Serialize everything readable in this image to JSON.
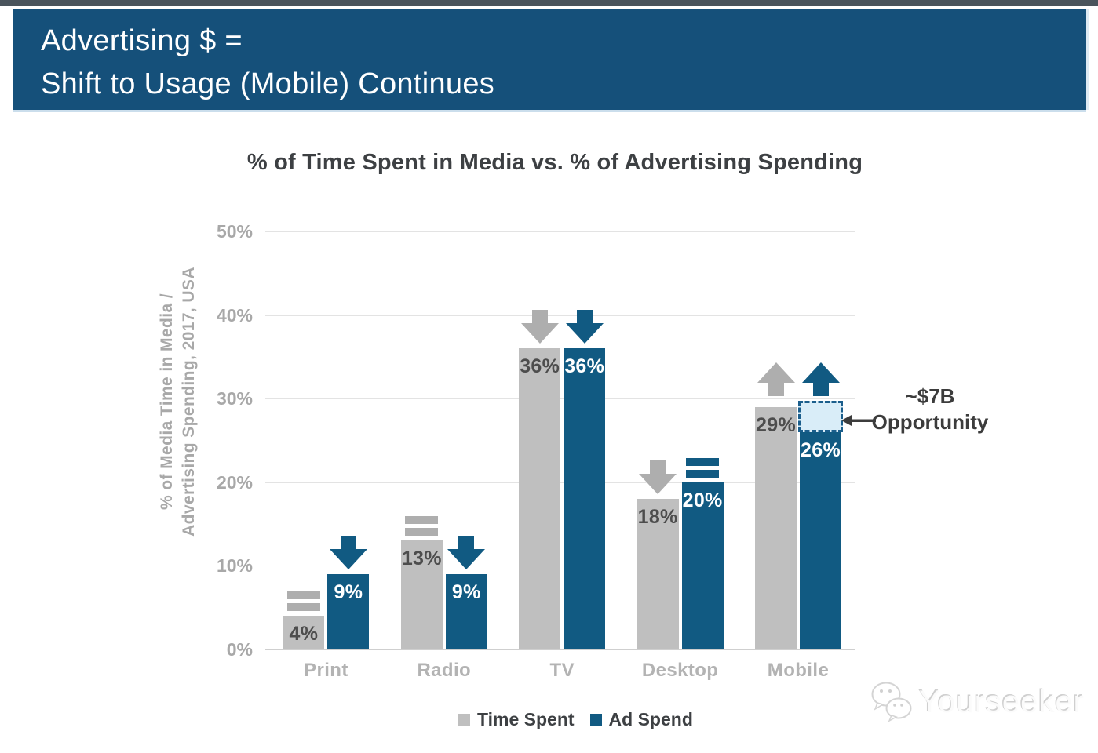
{
  "colors": {
    "top_strip": "#4a545c",
    "banner_bg": "#15507a",
    "title_text": "#3d4043",
    "tick_text": "#a8a8a8",
    "category_text": "#b3b3b3",
    "grid_line": "#e3e3e3",
    "axis_line": "#cfcfcf",
    "label_dark": "#4d4d4d",
    "annotation_text": "#3c3c3c",
    "opportunity_fill": "#d9edf8",
    "opportunity_border": "#1b5e8c",
    "bar_gray": "#bfbfbf",
    "bar_blue": "#115a82",
    "indicator_gray": "#aeaeae",
    "indicator_blue": "#115a82"
  },
  "banner": {
    "line1": "Advertising $ =",
    "line2": "Shift to Usage (Mobile) Continues"
  },
  "chart_data": {
    "type": "bar",
    "title": "% of Time Spent in Media vs. % of Advertising Spending",
    "ylabel": "% of Media Time in Media / Advertising Spending, 2017, USA",
    "ylabel_lines": [
      "% of Media Time in Media /",
      "Advertising Spending, 2017, USA"
    ],
    "ylim": [
      0,
      50
    ],
    "yticks": [
      {
        "label": "0%",
        "value": 0
      },
      {
        "label": "10%",
        "value": 10
      },
      {
        "label": "20%",
        "value": 20
      },
      {
        "label": "30%",
        "value": 30
      },
      {
        "label": "40%",
        "value": 40
      },
      {
        "label": "50%",
        "value": 50
      }
    ],
    "grid": true,
    "legend_position": "bottom",
    "categories": [
      "Print",
      "Radio",
      "TV",
      "Desktop",
      "Mobile"
    ],
    "series": [
      {
        "name": "Time Spent",
        "color": "#bfbfbf",
        "indicator_color": "#aeaeae",
        "values": [
          4,
          13,
          36,
          18,
          29
        ],
        "labels": [
          "4%",
          "13%",
          "36%",
          "18%",
          "29%"
        ],
        "trend": [
          "flat",
          "flat",
          "down",
          "down",
          "up"
        ]
      },
      {
        "name": "Ad Spend",
        "color": "#115a82",
        "indicator_color": "#115a82",
        "values": [
          9,
          9,
          36,
          20,
          26
        ],
        "labels": [
          "9%",
          "9%",
          "36%",
          "20%",
          "26%"
        ],
        "trend": [
          "down",
          "down",
          "down",
          "flat",
          "up"
        ]
      }
    ],
    "opportunity": {
      "category": "Mobile",
      "series": "Ad Spend",
      "gap_from_pct": 26,
      "gap_to_pct": 29,
      "label_line1": "~$7B",
      "label_line2": "Opportunity"
    }
  },
  "watermark": {
    "text": "Yourseeker"
  }
}
